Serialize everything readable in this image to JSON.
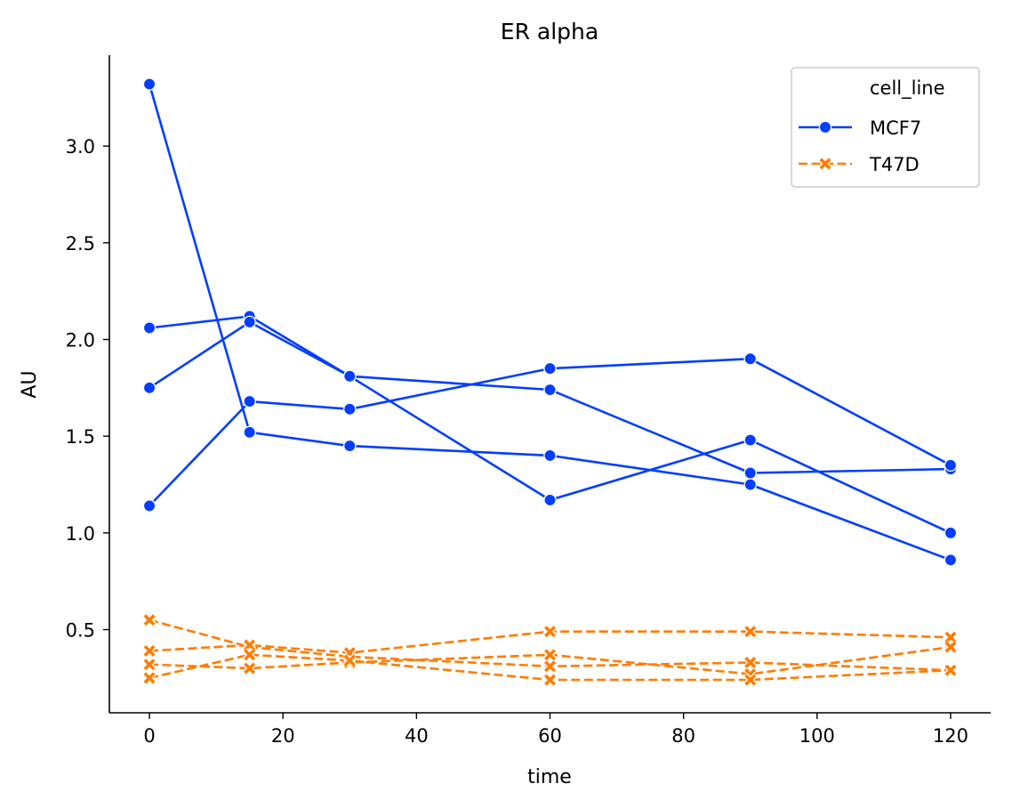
{
  "chart_data": {
    "type": "line",
    "title": "ER alpha",
    "xlabel": "time",
    "ylabel": "AU",
    "xlim": [
      -6,
      126
    ],
    "ylim": [
      0.07,
      3.47
    ],
    "xticks": [
      0,
      20,
      40,
      60,
      80,
      100,
      120
    ],
    "yticks": [
      0.5,
      1.0,
      1.5,
      2.0,
      2.5,
      3.0
    ],
    "ytick_labels": [
      "0.5",
      "1.0",
      "1.5",
      "2.0",
      "2.5",
      "3.0"
    ],
    "legend": {
      "title": "cell_line",
      "placement": "top-right"
    },
    "series": [
      {
        "name": "MCF7",
        "color": "#023eff",
        "marker": "circle",
        "line_style": "solid",
        "replicates": [
          {
            "x": [
              0,
              15,
              30,
              60,
              90,
              120
            ],
            "y": [
              3.32,
              1.52,
              1.45,
              1.4,
              1.25,
              0.86
            ]
          },
          {
            "x": [
              0,
              15,
              30,
              60,
              90,
              120
            ],
            "y": [
              2.06,
              2.12,
              1.81,
              1.74,
              1.31,
              1.33
            ]
          },
          {
            "x": [
              0,
              15,
              30,
              60,
              90,
              120
            ],
            "y": [
              1.75,
              2.09,
              1.81,
              1.17,
              1.48,
              1.0
            ]
          },
          {
            "x": [
              0,
              15,
              30,
              60,
              90,
              120
            ],
            "y": [
              1.14,
              1.68,
              1.64,
              1.85,
              1.9,
              1.35
            ]
          }
        ]
      },
      {
        "name": "T47D",
        "color": "#ff7c00",
        "marker": "x",
        "line_style": "dashed",
        "replicates": [
          {
            "x": [
              0,
              15,
              30,
              60,
              90,
              120
            ],
            "y": [
              0.55,
              0.41,
              0.36,
              0.31,
              0.33,
              0.29
            ]
          },
          {
            "x": [
              0,
              15,
              30,
              60,
              90,
              120
            ],
            "y": [
              0.39,
              0.42,
              0.38,
              0.49,
              0.49,
              0.46
            ]
          },
          {
            "x": [
              0,
              15,
              30,
              60,
              90,
              120
            ],
            "y": [
              0.32,
              0.3,
              0.33,
              0.37,
              0.27,
              0.41
            ]
          },
          {
            "x": [
              0,
              15,
              30,
              60,
              90,
              120
            ],
            "y": [
              0.25,
              0.37,
              0.34,
              0.24,
              0.24,
              0.29
            ]
          }
        ]
      }
    ]
  }
}
